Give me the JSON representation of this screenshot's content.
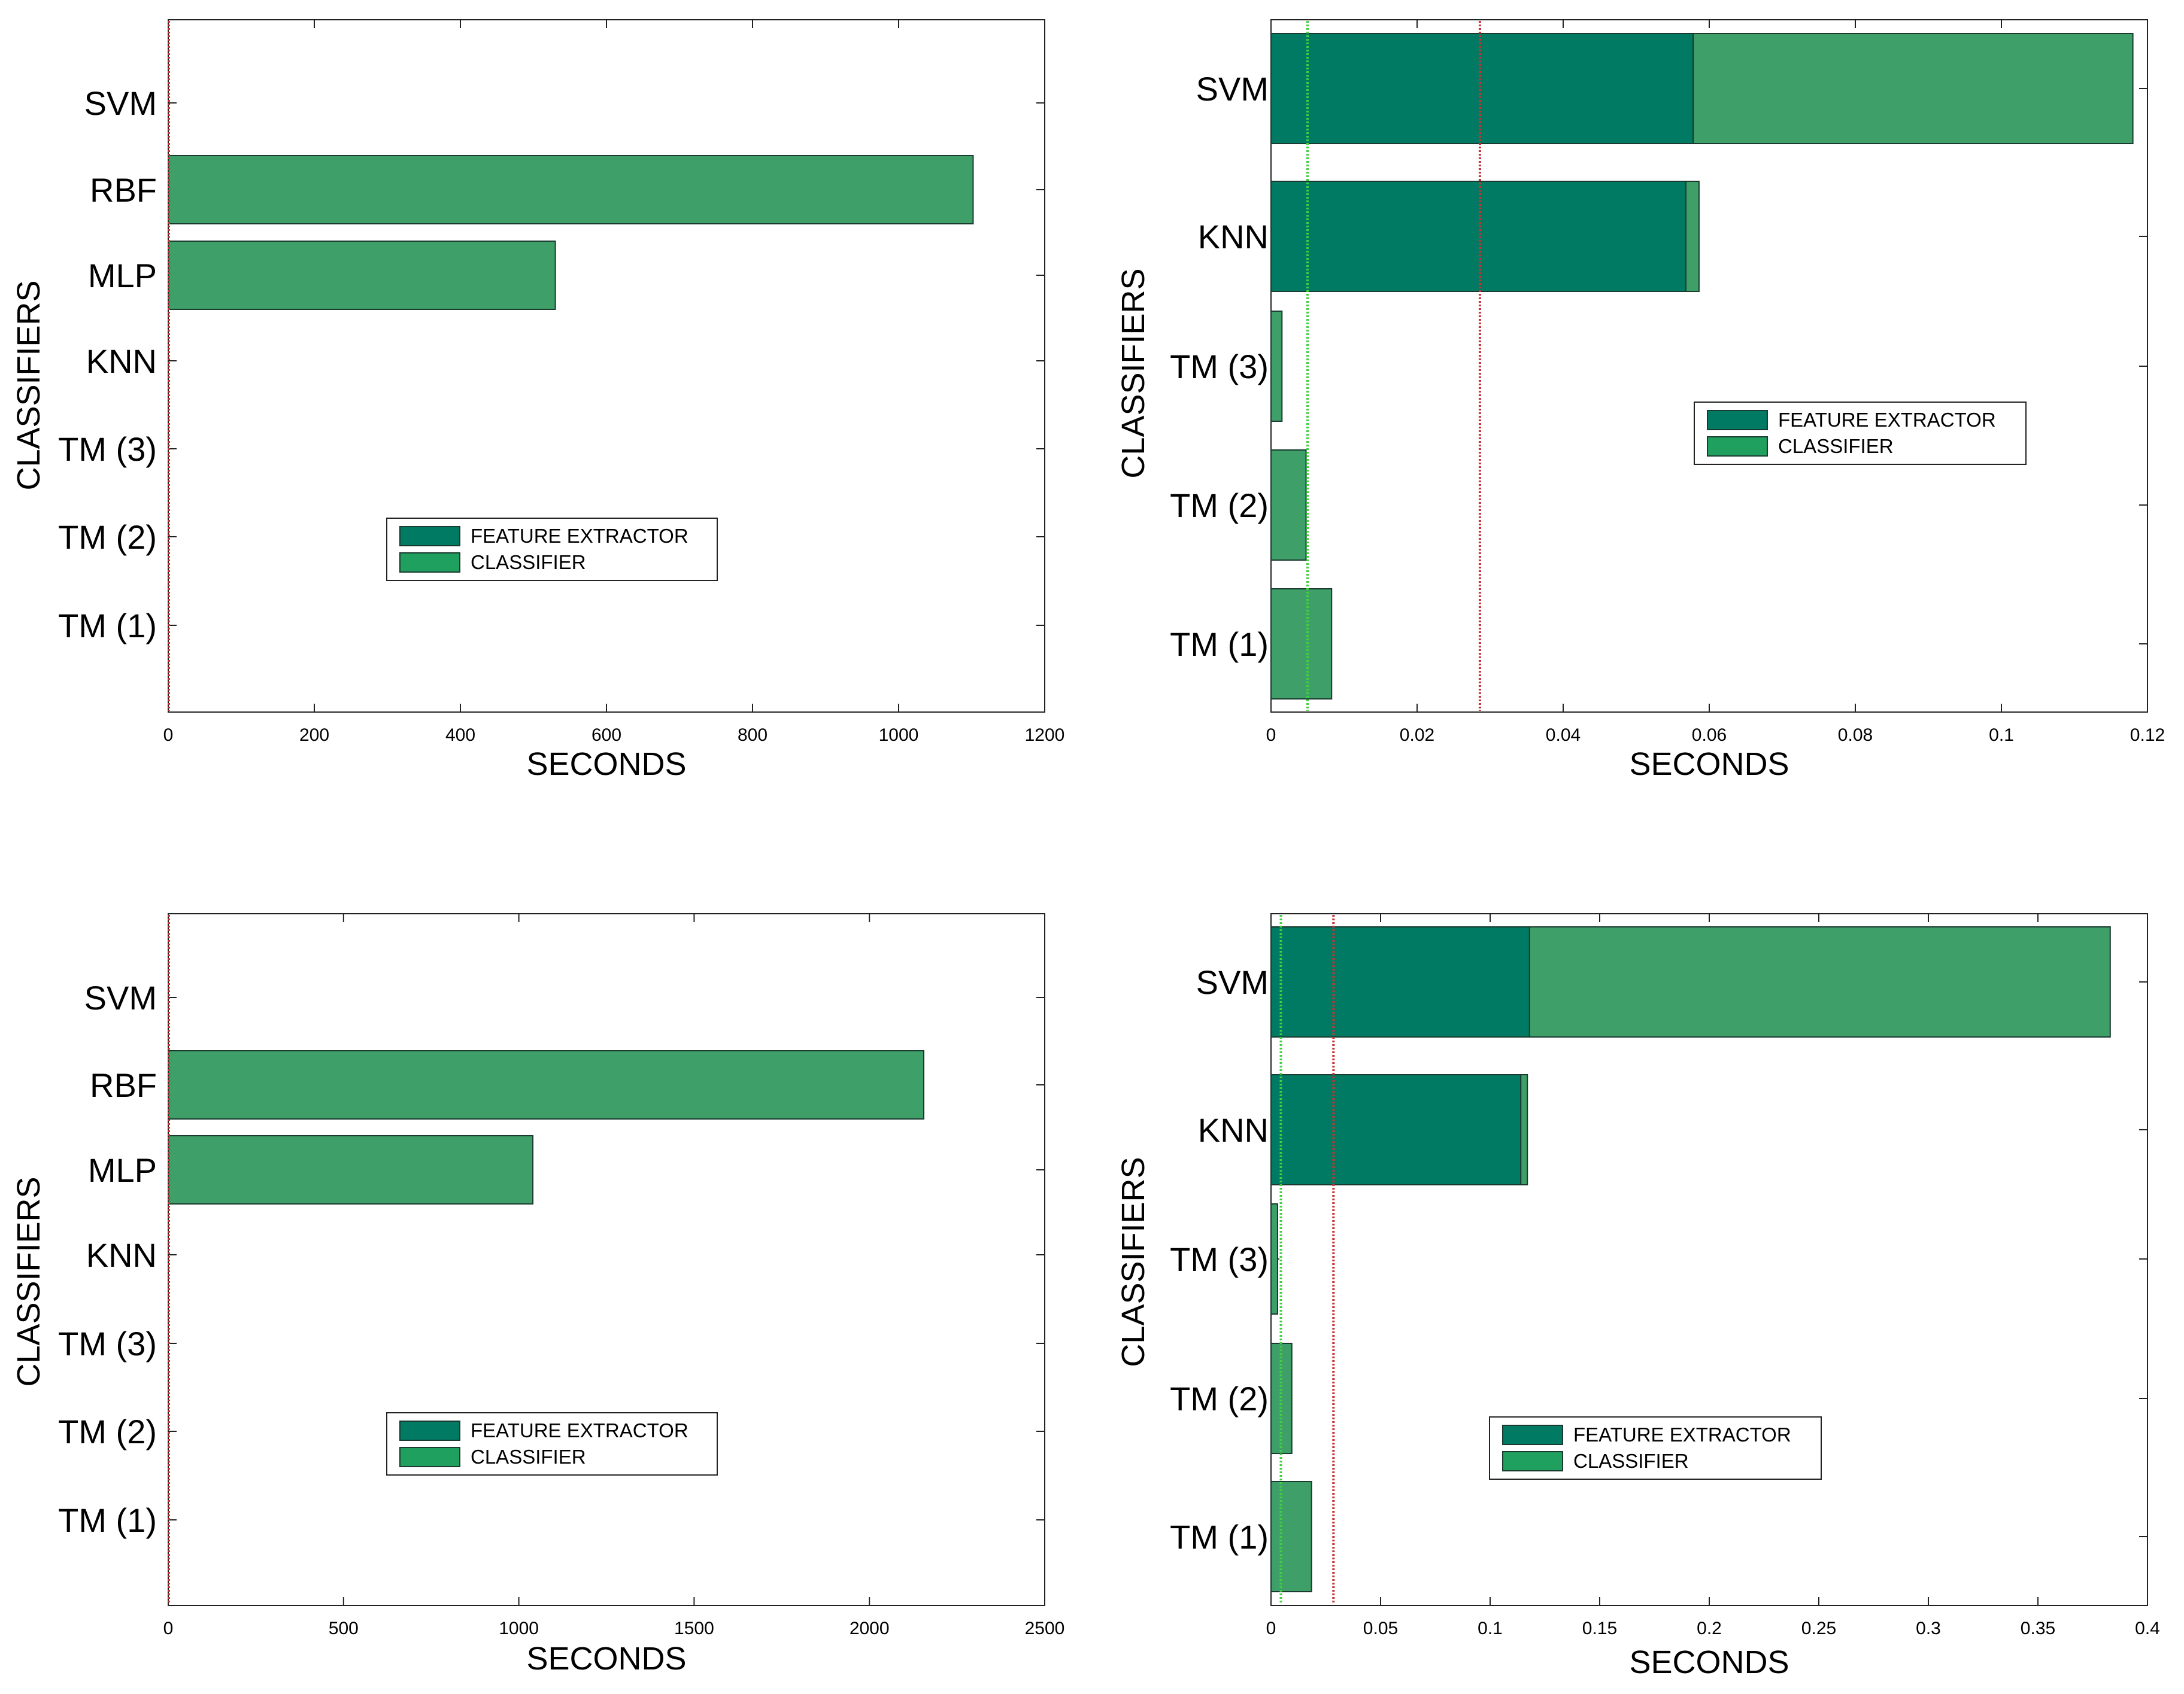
{
  "colors": {
    "feature_extractor": "#007a62",
    "classifier": "#20a05e",
    "classifier_bar": "#3f9f68",
    "green_line": "#40d040",
    "red_line": "#c83232"
  },
  "chart_data": [
    {
      "type": "bar",
      "orientation": "horizontal",
      "stacked": true,
      "xlabel": "SECONDS",
      "ylabel": "CLASSIFIERS",
      "categories": [
        "SVM",
        "RBF",
        "MLP",
        "KNN",
        "TM (3)",
        "TM (2)",
        "TM (1)"
      ],
      "series": [
        {
          "name": "FEATURE EXTRACTOR",
          "values": [
            0,
            0,
            0,
            0,
            0,
            0,
            0
          ]
        },
        {
          "name": "CLASSIFIER",
          "values": [
            0,
            1102,
            530,
            0,
            0,
            0,
            0
          ]
        }
      ],
      "xlim": [
        0,
        1200
      ],
      "xticks": [
        "0",
        "200",
        "400",
        "600",
        "800",
        "1000",
        "1200"
      ],
      "reference_lines": [
        {
          "x": 0,
          "color": "red"
        }
      ],
      "legend": "lower-center"
    },
    {
      "type": "bar",
      "orientation": "horizontal",
      "stacked": true,
      "xlabel": "SECONDS",
      "ylabel": "CLASSIFIERS",
      "categories": [
        "SVM",
        "KNN",
        "TM (3)",
        "TM (2)",
        "TM (1)"
      ],
      "series": [
        {
          "name": "FEATURE EXTRACTOR",
          "values": [
            0.0578,
            0.0568,
            0,
            0,
            0
          ]
        },
        {
          "name": "CLASSIFIER",
          "values": [
            0.0602,
            0.0018,
            0.0015,
            0.0048,
            0.0083
          ]
        }
      ],
      "xlim": [
        0,
        0.12
      ],
      "xticks": [
        "0",
        "0.02",
        "0.04",
        "0.06",
        "0.08",
        "0.1",
        "0.12"
      ],
      "reference_lines": [
        {
          "x": 0.005,
          "color": "green"
        },
        {
          "x": 0.0286,
          "color": "red"
        }
      ],
      "legend": "center-right"
    },
    {
      "type": "bar",
      "orientation": "horizontal",
      "stacked": true,
      "xlabel": "SECONDS",
      "ylabel": "CLASSIFIERS",
      "categories": [
        "SVM",
        "RBF",
        "MLP",
        "KNN",
        "TM (3)",
        "TM (2)",
        "TM (1)"
      ],
      "series": [
        {
          "name": "FEATURE EXTRACTOR",
          "values": [
            0,
            0,
            0,
            0,
            0,
            0,
            0
          ]
        },
        {
          "name": "CLASSIFIER",
          "values": [
            0,
            2155,
            1040,
            0,
            0,
            0,
            0
          ]
        }
      ],
      "xlim": [
        0,
        2500
      ],
      "xticks": [
        "0",
        "500",
        "1000",
        "1500",
        "2000",
        "2500"
      ],
      "reference_lines": [
        {
          "x": 0,
          "color": "red"
        }
      ],
      "legend": "lower-center"
    },
    {
      "type": "bar",
      "orientation": "horizontal",
      "stacked": true,
      "xlabel": "SECONDS",
      "ylabel": "CLASSIFIERS",
      "categories": [
        "SVM",
        "KNN",
        "TM (3)",
        "TM (2)",
        "TM (1)"
      ],
      "series": [
        {
          "name": "FEATURE EXTRACTOR",
          "values": [
            0.118,
            0.114,
            0,
            0,
            0
          ]
        },
        {
          "name": "CLASSIFIER",
          "values": [
            0.265,
            0.003,
            0.003,
            0.0095,
            0.0185
          ]
        }
      ],
      "xlim": [
        0,
        0.4
      ],
      "xticks": [
        "0",
        "0.05",
        "0.1",
        "0.15",
        "0.2",
        "0.25",
        "0.3",
        "0.35",
        "0.4"
      ],
      "reference_lines": [
        {
          "x": 0.0045,
          "color": "green"
        },
        {
          "x": 0.0285,
          "color": "red"
        }
      ],
      "legend": "lower-center"
    }
  ]
}
